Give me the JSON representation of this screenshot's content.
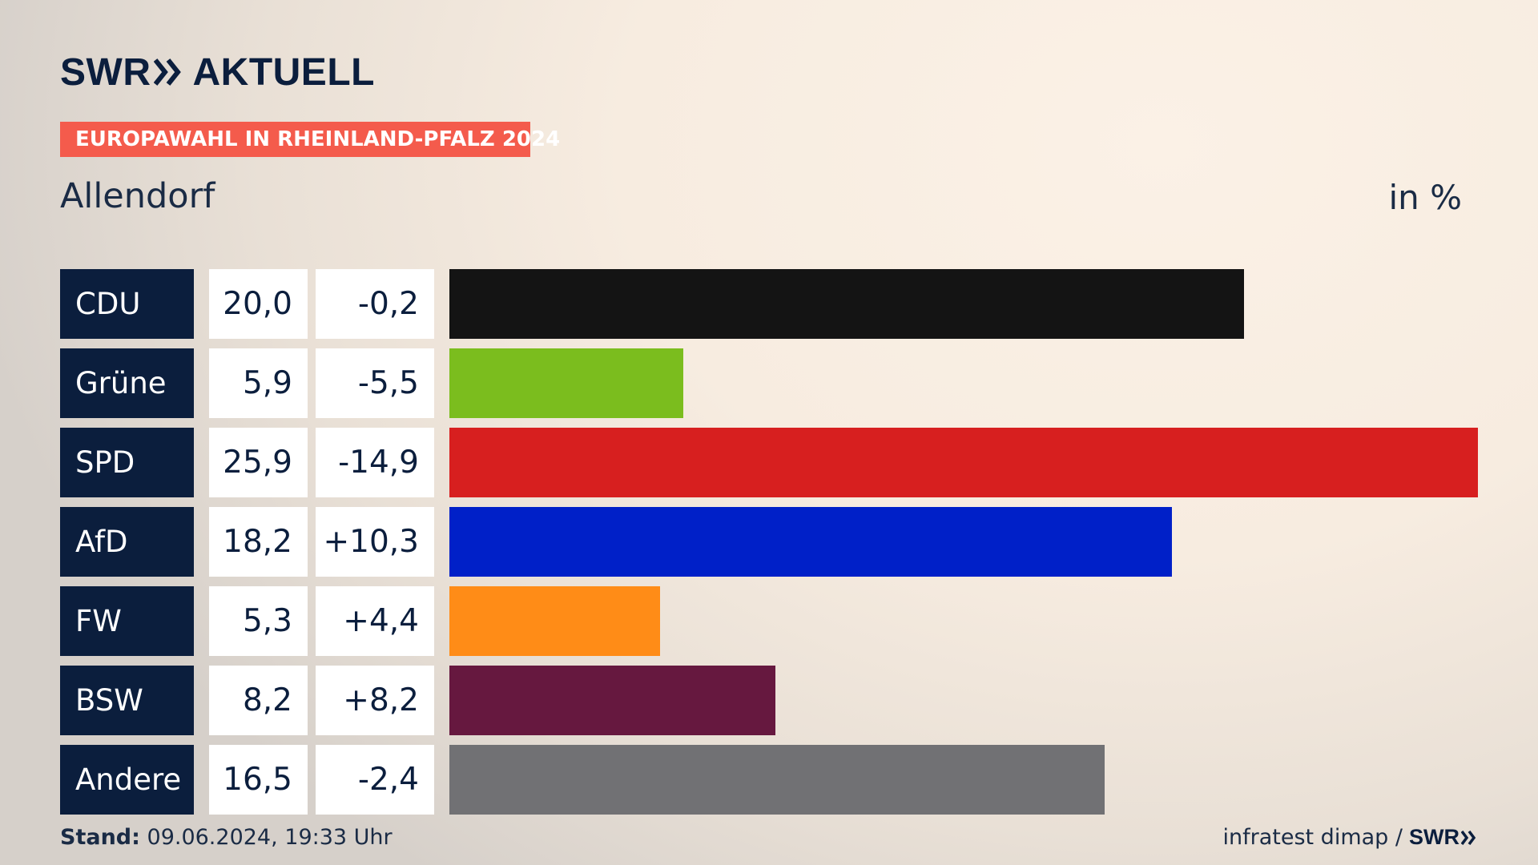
{
  "header": {
    "logo_main": "SWR",
    "logo_sub": "AKTUELL",
    "badge": "EUROPAWAHL IN RHEINLAND-PFALZ 2024",
    "region": "Allendorf",
    "unit": "in %"
  },
  "footer": {
    "stand_label": "Stand:",
    "stand_value": "09.06.2024, 19:33 Uhr",
    "source": "infratest dimap /",
    "source_logo": "SWR"
  },
  "chart_data": {
    "type": "bar",
    "orientation": "horizontal",
    "categories": [
      "CDU",
      "Grüne",
      "SPD",
      "AfD",
      "FW",
      "BSW",
      "Andere"
    ],
    "values": [
      20.0,
      5.9,
      25.9,
      18.2,
      5.3,
      8.2,
      16.5
    ],
    "value_labels": [
      "20,0",
      "5,9",
      "25,9",
      "18,2",
      "5,3",
      "8,2",
      "16,5"
    ],
    "change_labels": [
      "-0,2",
      "-5,5",
      "-14,9",
      "+10,3",
      "+4,4",
      "+8,2",
      "-2,4"
    ],
    "changes": [
      -0.2,
      -5.5,
      -14.9,
      10.3,
      4.4,
      8.2,
      -2.4
    ],
    "colors": [
      "#141414",
      "#7bbd1e",
      "#d71f1f",
      "#0020c8",
      "#ff8c17",
      "#66183f",
      "#717174"
    ],
    "xlim": [
      0,
      25.9
    ],
    "grid": false,
    "title": "",
    "xlabel": "",
    "ylabel": ""
  }
}
